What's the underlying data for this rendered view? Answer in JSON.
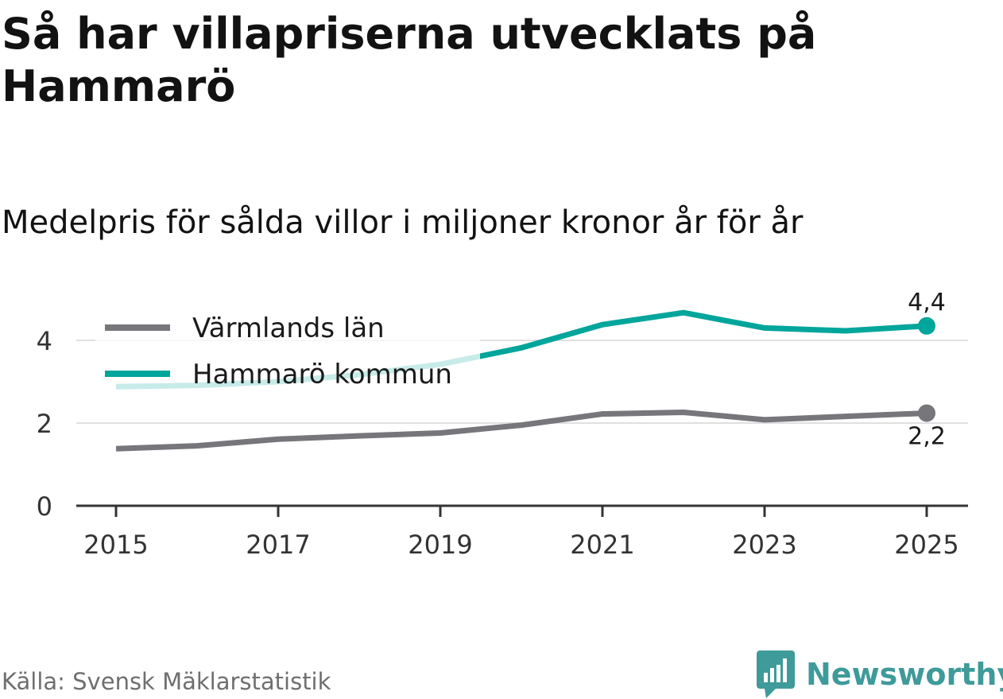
{
  "title": "Så har villapriserna utvecklats på Hammarö",
  "subtitle": "Medelpris för sålda villor i miljoner kronor år för år",
  "source": "Källa: Svensk Mäklarstatistik",
  "brand": {
    "name": "Newsworthy",
    "logo_icon": "bar-chart-speech-bubble-icon",
    "color": "#3f9a9a"
  },
  "colors": {
    "varmland": "#77767b",
    "hammaro": "#00a59b",
    "grid": "#e0e0e0",
    "axis": "#333333"
  },
  "chart_data": {
    "type": "line",
    "title": "Så har villapriserna utvecklats på Hammarö",
    "subtitle": "Medelpris för sålda villor i miljoner kronor år för år",
    "x": [
      2015,
      2016,
      2017,
      2018,
      2019,
      2020,
      2021,
      2022,
      2023,
      2024,
      2025
    ],
    "x_ticks": [
      "2015",
      "2017",
      "2019",
      "2021",
      "2023",
      "2025"
    ],
    "y_ticks": [
      "0",
      "2",
      "4"
    ],
    "ylim": [
      0,
      5
    ],
    "xlabel": "",
    "ylabel": "",
    "grid": true,
    "legend_position": "top-left",
    "series": [
      {
        "name": "Värmlands län",
        "values": [
          1.38,
          1.45,
          1.61,
          1.69,
          1.76,
          1.95,
          2.22,
          2.26,
          2.08,
          2.16,
          2.24
        ],
        "end_label": "2,2"
      },
      {
        "name": "Hammarö kommun",
        "values": [
          2.88,
          2.91,
          3.0,
          3.17,
          3.42,
          3.82,
          4.38,
          4.67,
          4.3,
          4.23,
          4.35
        ],
        "end_label": "4,4"
      }
    ]
  }
}
